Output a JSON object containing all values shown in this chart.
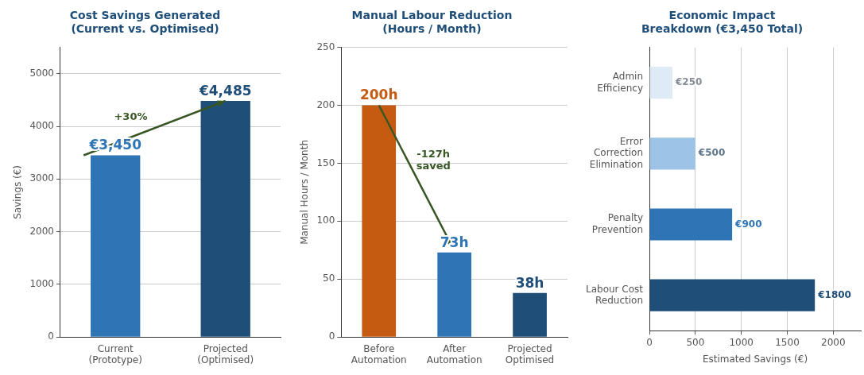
{
  "chart_data": [
    {
      "type": "bar",
      "title": "Cost Savings Generated\n(Current vs. Optimised)",
      "ylabel": "Savings (€)",
      "categories": [
        "Current\n(Prototype)",
        "Projected\n(Optimised)"
      ],
      "values": [
        3450,
        4485
      ],
      "colors": [
        "#2e75b6",
        "#1f4e79"
      ],
      "value_labels": [
        "€3,450",
        "€4,485"
      ],
      "ylim": [
        0,
        5500
      ],
      "yticks": [
        0,
        1000,
        2000,
        3000,
        4000,
        5000
      ],
      "grid": "y",
      "annotations": [
        "+30%"
      ]
    },
    {
      "type": "bar",
      "title": "Manual Labour Reduction\n(Hours / Month)",
      "ylabel": "Manual Hours / Month",
      "categories": [
        "Before\nAutomation",
        "After\nAutomation",
        "Projected\nOptimised"
      ],
      "values": [
        200,
        73,
        38
      ],
      "colors": [
        "#c55a11",
        "#2e75b6",
        "#1f4e79"
      ],
      "value_labels": [
        "200h",
        "73h",
        "38h"
      ],
      "ylim": [
        0,
        250
      ],
      "yticks": [
        0,
        50,
        100,
        150,
        200,
        250
      ],
      "grid": "y",
      "annotations": [
        "-127h\nsaved"
      ]
    },
    {
      "type": "bar",
      "orientation": "horizontal",
      "title": "Economic Impact\nBreakdown (€3,450 Total)",
      "xlabel": "Estimated Savings (€)",
      "categories": [
        "Admin\nEfficiency",
        "Error\nCorrection\nElimination",
        "Penalty\nPrevention",
        "Labour Cost\nReduction"
      ],
      "values": [
        250,
        500,
        900,
        1800
      ],
      "colors": [
        "#deebf7",
        "#9dc3e6",
        "#2e75b6",
        "#1f4e79"
      ],
      "value_labels": [
        "€250",
        "€500",
        "€900",
        "€1800"
      ],
      "xlim": [
        0,
        2300
      ],
      "xticks": [
        0,
        500,
        1000,
        1500,
        2000
      ],
      "grid": "x"
    }
  ]
}
